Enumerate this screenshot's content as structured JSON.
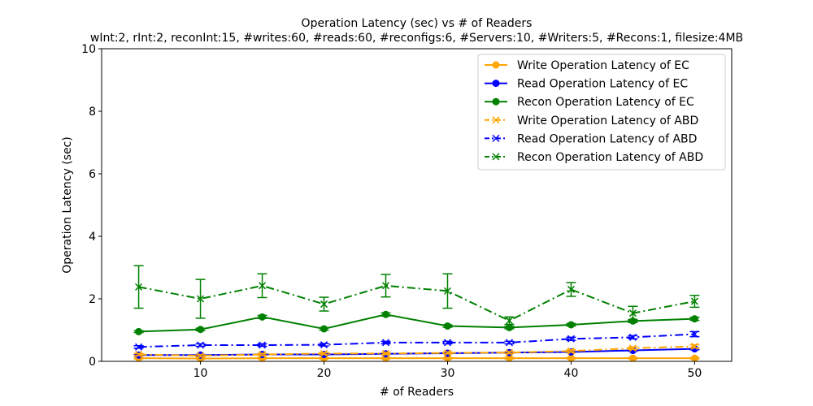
{
  "chart_data": {
    "type": "line",
    "title": "Operation Latency (sec) vs # of Readers",
    "subtitle": "wInt:2, rInt:2, reconInt:15, #writes:60, #reads:60, #reconfigs:6, #Servers:10, #Writers:5, #Recons:1, filesize:4MB",
    "xlabel": "# of Readers",
    "ylabel": "Operation Latency (sec)",
    "xlim": [
      2,
      53
    ],
    "ylim": [
      0,
      10
    ],
    "x_ticks": [
      10,
      20,
      30,
      40,
      50
    ],
    "y_ticks": [
      0,
      2,
      4,
      6,
      8,
      10
    ],
    "legend_position": "top-right",
    "x": [
      5,
      10,
      15,
      20,
      25,
      30,
      35,
      40,
      45,
      50
    ],
    "series": [
      {
        "name": "Write Operation Latency of EC",
        "color": "#ffa500",
        "linestyle": "solid",
        "marker": "circle",
        "values": [
          0.1,
          0.09,
          0.1,
          0.1,
          0.1,
          0.1,
          0.1,
          0.1,
          0.1,
          0.1
        ],
        "err": [
          0.02,
          0.02,
          0.02,
          0.02,
          0.02,
          0.02,
          0.02,
          0.02,
          0.02,
          0.02
        ]
      },
      {
        "name": "Read Operation Latency of EC",
        "color": "#0000ff",
        "linestyle": "solid",
        "marker": "circle",
        "values": [
          0.2,
          0.2,
          0.22,
          0.22,
          0.24,
          0.26,
          0.28,
          0.3,
          0.35,
          0.4
        ],
        "err": [
          0.02,
          0.02,
          0.02,
          0.02,
          0.02,
          0.02,
          0.02,
          0.02,
          0.03,
          0.03
        ]
      },
      {
        "name": "Recon Operation Latency of EC",
        "color": "#008000",
        "linestyle": "solid",
        "marker": "circle",
        "values": [
          0.95,
          1.02,
          1.42,
          1.04,
          1.5,
          1.13,
          1.08,
          1.17,
          1.29,
          1.36
        ],
        "err": [
          0.03,
          0.04,
          0.05,
          0.04,
          0.05,
          0.04,
          0.04,
          0.04,
          0.05,
          0.05
        ]
      },
      {
        "name": "Write Operation Latency of ABD",
        "color": "#ffa500",
        "linestyle": "dashdot",
        "marker": "x",
        "values": [
          0.22,
          0.18,
          0.22,
          0.25,
          0.25,
          0.27,
          0.28,
          0.33,
          0.42,
          0.48
        ],
        "err": [
          0.03,
          0.03,
          0.03,
          0.03,
          0.03,
          0.03,
          0.03,
          0.04,
          0.04,
          0.05
        ]
      },
      {
        "name": "Read Operation Latency of ABD",
        "color": "#0000ff",
        "linestyle": "dashdot",
        "marker": "x",
        "values": [
          0.46,
          0.52,
          0.52,
          0.53,
          0.6,
          0.6,
          0.6,
          0.72,
          0.77,
          0.87
        ],
        "err": [
          0.04,
          0.04,
          0.04,
          0.04,
          0.04,
          0.04,
          0.04,
          0.05,
          0.05,
          0.08
        ]
      },
      {
        "name": "Recon Operation Latency of ABD",
        "color": "#008000",
        "linestyle": "dashdot",
        "marker": "x",
        "values": [
          2.38,
          2.0,
          2.42,
          1.83,
          2.42,
          2.25,
          1.3,
          2.3,
          1.54,
          1.92
        ],
        "err": [
          0.68,
          0.62,
          0.38,
          0.22,
          0.36,
          0.55,
          0.12,
          0.22,
          0.22,
          0.19
        ]
      }
    ]
  }
}
